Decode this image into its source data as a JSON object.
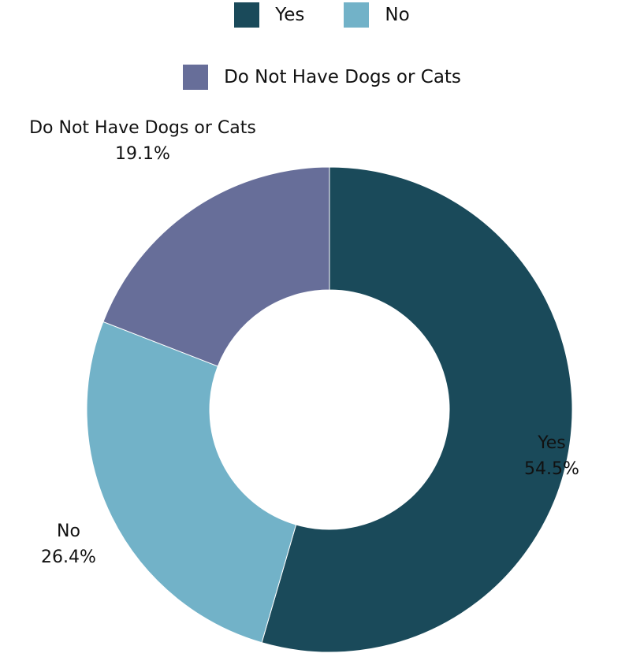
{
  "chart_data": {
    "type": "pie",
    "title": "",
    "donut": true,
    "legend_position": "top",
    "slices": [
      {
        "label": "Yes",
        "value": 54.5,
        "display": "54.5%",
        "color": "#1a4a5a"
      },
      {
        "label": "No",
        "value": 26.4,
        "display": "26.4%",
        "color": "#72b2c8"
      },
      {
        "label": "Do Not Have Dogs or Cats",
        "value": 19.1,
        "display": "19.1%",
        "color": "#676e99"
      }
    ]
  }
}
